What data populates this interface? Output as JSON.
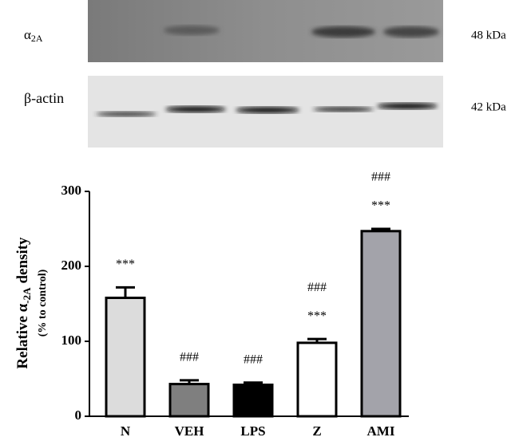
{
  "blot": {
    "rows": [
      {
        "protein": "α",
        "protein_sub": "2A",
        "size": "48 kDa"
      },
      {
        "protein": "β-actin",
        "size": "42 kDa"
      }
    ]
  },
  "chart_data": {
    "type": "bar",
    "ylabel": {
      "main": "Relative α",
      "sub": "-2A",
      "after": "density",
      "note": "(% to control)"
    },
    "categories": [
      "N",
      "VEH",
      "LPS",
      "Z",
      "AMI"
    ],
    "values": [
      158,
      43,
      42,
      98,
      247
    ],
    "errors": [
      14,
      5,
      3,
      5,
      3
    ],
    "colors": [
      "#dcdcdc",
      "#7f7f7f",
      "#000000",
      "#ffffff",
      "#a3a3aa"
    ],
    "annotations": [
      [
        "***"
      ],
      [
        "###"
      ],
      [
        "###"
      ],
      [
        "###",
        "***"
      ],
      [
        "###",
        "***"
      ]
    ],
    "ylim": [
      0,
      300
    ],
    "yticks": [
      0,
      100,
      200,
      300
    ]
  }
}
